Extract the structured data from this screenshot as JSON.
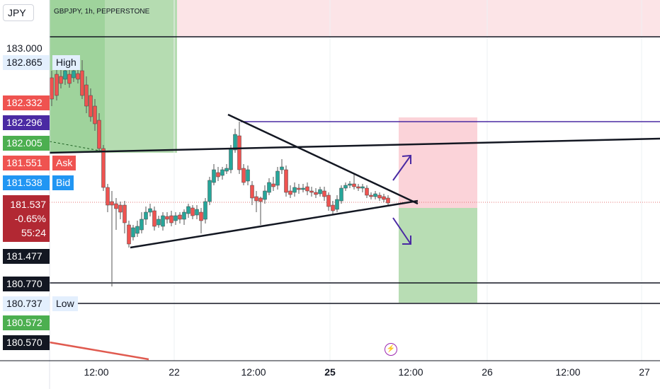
{
  "header": {
    "currency": "JPY",
    "title": "GBPJPY, 1h, PEPPERSTONE"
  },
  "price_labels": {
    "p183000": "183.000",
    "high": "182.865",
    "high_tag": "High",
    "p182332": "182.332",
    "p182296": "182.296",
    "p182005": "182.005",
    "ask": "181.551",
    "ask_tag": "Ask",
    "bid": "181.538",
    "bid_tag": "Bid",
    "last": "181.537",
    "change": "-0.65%",
    "countdown": "55:24",
    "p181477": "181.477",
    "p180770": "180.770",
    "low": "180.737",
    "low_tag": "Low",
    "p180572": "180.572",
    "p180570": "180.570"
  },
  "x_axis": [
    "12:00",
    "22",
    "12:00",
    "25",
    "12:00",
    "26",
    "12:00",
    "27"
  ],
  "colors": {
    "up": "#26a69a",
    "down": "#ef5350",
    "drawing_purple": "#4a2aa3",
    "green_zone": "#b7ddb4",
    "red_zone": "#fbd7dc"
  },
  "icons": [
    "lightning-icon",
    "arrow-up-icon",
    "arrow-down-icon"
  ]
}
